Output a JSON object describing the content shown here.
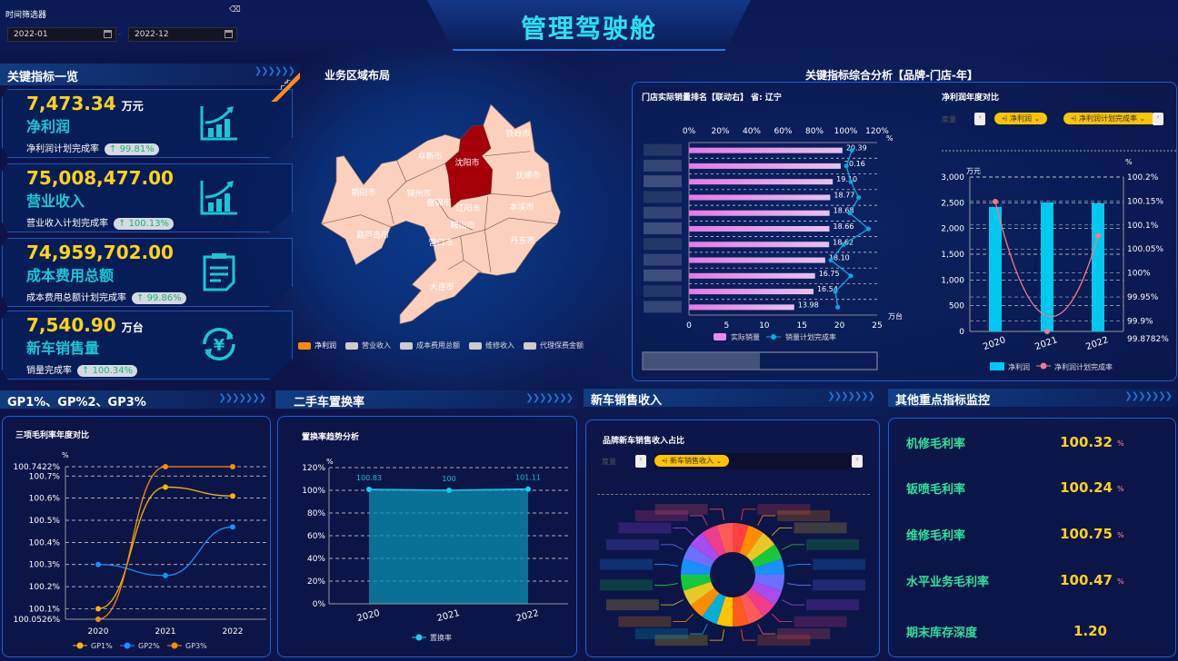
{
  "header": {
    "title": "管理驾驶舱"
  },
  "filter": {
    "label": "时间筛选器",
    "start": "2022-01",
    "end": "2022-12",
    "separator": "-"
  },
  "kpi": {
    "title": "关键指标一览",
    "ribbon": "关联",
    "cards": [
      {
        "value": "7,473.34",
        "unit": "万元",
        "name": "净利润",
        "rate_label": "净利润计划完成率",
        "rate": "99.81%",
        "icon": "chart-growth-icon"
      },
      {
        "value": "75,008,477.00",
        "unit": "",
        "name": "营业收入",
        "rate_label": "营业收入计划完成率",
        "rate": "100.13%",
        "icon": "chart-growth-icon"
      },
      {
        "value": "74,959,702.00",
        "unit": "",
        "name": "成本费用总额",
        "rate_label": "成本费用总额计划完成率",
        "rate": "99.86%",
        "icon": "clipboard-icon"
      },
      {
        "value": "7,540.90",
        "unit": "万台",
        "name": "新车销售量",
        "rate_label": "销量完成率",
        "rate": "100.34%",
        "icon": "yen-cycle-icon"
      }
    ]
  },
  "map": {
    "title": "业务区域布局",
    "highlight_color": "#a50009",
    "base_color": "#fdd0bd",
    "cities": [
      "铁岭市",
      "阜新市",
      "沈阳市",
      "抚顺市",
      "朝阳市",
      "锦州市",
      "盘锦市",
      "辽阳市",
      "本溪市",
      "鞍山市",
      "葫芦岛市",
      "营口市",
      "丹东市",
      "大连市"
    ],
    "legend": [
      {
        "label": "净利润",
        "color": "#ff8a00"
      },
      {
        "label": "营业收入",
        "color": "#ccc"
      },
      {
        "label": "成本费用总额",
        "color": "#ccc"
      },
      {
        "label": "维修收入",
        "color": "#ccc"
      },
      {
        "label": "代理保费金额",
        "color": "#ccc"
      }
    ]
  },
  "analysis": {
    "title": "关键指标综合分析【品牌-门店-年】"
  },
  "chart_data": [
    {
      "type": "bar",
      "title": "门店实际销量排名【联动右】 省: 辽宁",
      "orientation": "horizontal",
      "xlabel": "万台",
      "x2label": "%",
      "xlim": [
        0,
        25
      ],
      "x2lim": [
        0,
        120
      ],
      "xticks": [
        "0",
        "5",
        "10",
        "15",
        "20",
        "25"
      ],
      "x2ticks": [
        "0%",
        "20%",
        "40%",
        "60%",
        "80%",
        "100%",
        "120%"
      ],
      "series": [
        {
          "name": "实际销量",
          "type": "bar",
          "color": "#e88be6",
          "values": [
            20.39,
            20.16,
            19.1,
            18.77,
            18.68,
            18.66,
            18.62,
            18.1,
            16.75,
            16.54,
            13.98
          ],
          "labels": [
            "20.39",
            "20.16",
            "19.10",
            "18.77",
            "18.68",
            "18.66",
            "18.62",
            "18.10",
            "16.75",
            "16.54",
            "13.98"
          ]
        },
        {
          "name": "销量计划完成率",
          "type": "line",
          "axis": "x2",
          "color": "#0aa8e0",
          "values": [
            103.9,
            100.4,
            103.2,
            108.2,
            102.6,
            114.5,
            98.6,
            90.5,
            103.2,
            93.4,
            94.9
          ]
        }
      ],
      "slider_range": [
        0,
        50
      ]
    },
    {
      "type": "bar",
      "title": "净利润年度对比",
      "measure_label": "度量",
      "chips": [
        "净利润",
        "净利润计划完成率"
      ],
      "categories": [
        "2020",
        "2021",
        "2022"
      ],
      "ylabel": "万元",
      "y2label": "%",
      "ylim": [
        0,
        3000
      ],
      "y2lim": [
        99.8782,
        100.2
      ],
      "yticks": [
        "0",
        "500",
        "1,000",
        "1,500",
        "2,000",
        "2,500",
        "3,000"
      ],
      "y2ticks": [
        "99.8782%",
        "99.9%",
        "99.95%",
        "100%",
        "100.05%",
        "100.1%",
        "100.15%",
        "100.2%"
      ],
      "series": [
        {
          "name": "净利润",
          "type": "bar",
          "color": "#00c8ee",
          "values": [
            2420,
            2510,
            2490
          ]
        },
        {
          "name": "净利润计划完成率",
          "type": "line",
          "axis": "y2",
          "color": "#f47a8a",
          "values": [
            100.149,
            99.8782,
            100.078
          ]
        }
      ]
    },
    {
      "type": "line",
      "section": "GP1%、GP%2、GP3%",
      "title": "三项毛利率年度对比",
      "categories": [
        "2020",
        "2021",
        "2022"
      ],
      "ylabel": "%",
      "ylim": [
        100.0526,
        100.7422
      ],
      "yticks": [
        "100.0526%",
        "100.1%",
        "100.2%",
        "100.3%",
        "100.4%",
        "100.5%",
        "100.6%",
        "100.7%",
        "100.7422%"
      ],
      "series": [
        {
          "name": "GP1%",
          "color": "#f5b800",
          "values": [
            100.1,
            100.65,
            100.61
          ]
        },
        {
          "name": "GP2%",
          "color": "#1890ff",
          "values": [
            100.3,
            100.25,
            100.47
          ]
        },
        {
          "name": "GP3%",
          "color": "#ff8c00",
          "values": [
            100.0526,
            100.7422,
            100.7422
          ]
        }
      ]
    },
    {
      "type": "area",
      "section": "二手车置换率",
      "title": "置换率趋势分析",
      "categories": [
        "2020",
        "2021",
        "2022"
      ],
      "ylabel": "%",
      "ylim": [
        0,
        120
      ],
      "yticks": [
        "0%",
        "20%",
        "40%",
        "60%",
        "80%",
        "100%",
        "120%"
      ],
      "series": [
        {
          "name": "置换率",
          "color": "#10d0ee",
          "values": [
            100.83,
            100,
            101.11
          ],
          "labels": [
            "100.83",
            "100",
            "101.11"
          ]
        }
      ]
    },
    {
      "type": "pie",
      "section": "新车销售收入",
      "title": "品牌新车销售收入占比",
      "measure_label": "度量",
      "chips": [
        "新车销售收入"
      ],
      "donut": true,
      "slice_colors": [
        "#ff4040",
        "#ff8c00",
        "#e8c825",
        "#16c93a",
        "#1890ff",
        "#6f6fff",
        "#a64cf0",
        "#f03c8c",
        "#ff5a5a",
        "#ff5a1a",
        "#ffc400",
        "#00b0d8",
        "#ff8c00",
        "#e8c825",
        "#16c93a",
        "#1890ff",
        "#6f6fff",
        "#a64cf0",
        "#f03c8c",
        "#ff5a5a"
      ]
    }
  ],
  "others": {
    "title": "其他重点指标监控",
    "items": [
      {
        "label": "机修毛利率",
        "value": "100.32",
        "unit": "%"
      },
      {
        "label": "钣喷毛利率",
        "value": "100.24",
        "unit": "%"
      },
      {
        "label": "维修毛利率",
        "value": "100.75",
        "unit": "%"
      },
      {
        "label": "水平业务毛利率",
        "value": "100.47",
        "unit": "%"
      },
      {
        "label": "期末库存深度",
        "value": "1.20",
        "unit": ""
      }
    ]
  }
}
